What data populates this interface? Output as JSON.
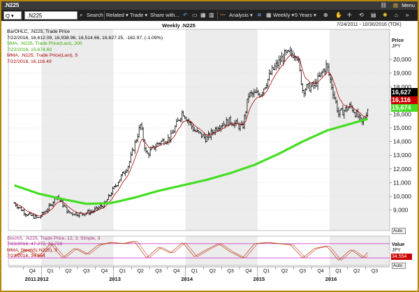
{
  "window": {
    "title": ".N225",
    "menu_label": "Menu"
  },
  "toolbar": {
    "quote_type": "Q",
    "symbol": ".N225",
    "search_label": "Search",
    "related_label": "Related",
    "trade_label": "Trade",
    "share_label": "Share with...",
    "analysis_label": "Analysis",
    "interval_label": "Weekly",
    "range_label": "5 Years"
  },
  "chart_header": {
    "title": "Weekly .N225",
    "date_range": "7/24/2011 - 10/30/2016 (TOK)",
    "price_label": "Price",
    "currency": "JPY",
    "value_label": "Value",
    "value_currency": "JPY",
    "auto_label": "Auto"
  },
  "legend": {
    "main": [
      {
        "text": "BarOHLC, .N225, Trade Price",
        "color": "#000000"
      },
      {
        "text": "7/22/2016, 16,612.09, 16,938.96, 16,514.66, 16,627.25, -182.97, (-1.09%)",
        "color": "#000000"
      },
      {
        "text": "SMA, .N225, Trade Price(Last), 200",
        "color": "#33aa00"
      },
      {
        "text": "7/22/2016, 15,674.60",
        "color": "#33aa00"
      },
      {
        "text": "MMA, .N225, Trade Price(Last), 5",
        "color": "#aa0000"
      },
      {
        "text": "7/22/2016, 16,116.49",
        "color": "#aa0000"
      }
    ],
    "lower": [
      {
        "text": "StochS, .N225, Trade Price, 12, 3, Simple, 3",
        "color": "#aa3388"
      },
      {
        "text": "7/22/2016, 47.272, 31.728",
        "color": "#aa3388"
      },
      {
        "text": "MMA, StochS(.N225), 3",
        "color": "#aa0000"
      },
      {
        "text": "7/22/2016, 34.554",
        "color": "#aa0000"
      }
    ]
  },
  "price_tags": {
    "last": "16,627",
    "mma": "16,116",
    "sma": "15,674",
    "stoch": "34.554"
  },
  "colors": {
    "sma_line": "#44dd22",
    "mma_line": "#aa0000",
    "bars": "#000000",
    "stoch_band": "#cc44cc",
    "stoch_line": "#b8551a",
    "year_shade": "#ececec",
    "frame": "#b8860b"
  },
  "chart_data": {
    "type": "line",
    "title": "Weekly .N225",
    "subtitle": "7/24/2011 - 10/30/2016 (TOK)",
    "y_label": "Price JPY",
    "y_range": [
      7500,
      22200
    ],
    "y_ticks": [
      9000,
      10000,
      11000,
      12000,
      13000,
      14000,
      15000,
      16000,
      17000,
      18000,
      19000,
      20000
    ],
    "x_quarters": [
      "Q4",
      "Q1",
      "Q2",
      "Q3",
      "Q4",
      "Q1",
      "Q2",
      "Q3",
      "Q4",
      "Q1",
      "Q2",
      "Q3",
      "Q4",
      "Q1",
      "Q2",
      "Q3",
      "Q4",
      "Q1",
      "Q2",
      "Q3",
      "Q4"
    ],
    "x_years": [
      "2011",
      "2012",
      "2013",
      "2014",
      "2015",
      "2016"
    ],
    "close_series": {
      "name": "BarOHLC, .N225, Trade Price",
      "points": [
        [
          "2011-08",
          9500
        ],
        [
          "2011-10",
          8700
        ],
        [
          "2011-12",
          8400
        ],
        [
          "2012-02",
          9300
        ],
        [
          "2012-03",
          10100
        ],
        [
          "2012-05",
          8800
        ],
        [
          "2012-07",
          8700
        ],
        [
          "2012-09",
          8900
        ],
        [
          "2012-11",
          9400
        ],
        [
          "2013-01",
          10900
        ],
        [
          "2013-03",
          12300
        ],
        [
          "2013-05",
          15200
        ],
        [
          "2013-06",
          13000
        ],
        [
          "2013-08",
          13900
        ],
        [
          "2013-10",
          14300
        ],
        [
          "2013-12",
          16200
        ],
        [
          "2014-02",
          14800
        ],
        [
          "2014-04",
          14200
        ],
        [
          "2014-06",
          15200
        ],
        [
          "2014-08",
          15500
        ],
        [
          "2014-10",
          15000
        ],
        [
          "2014-11",
          17400
        ],
        [
          "2015-01",
          17500
        ],
        [
          "2015-03",
          19200
        ],
        [
          "2015-05",
          20300
        ],
        [
          "2015-07",
          20500
        ],
        [
          "2015-08",
          17800
        ],
        [
          "2015-10",
          18100
        ],
        [
          "2015-12",
          19600
        ],
        [
          "2016-02",
          16000
        ],
        [
          "2016-04",
          16600
        ],
        [
          "2016-06",
          15300
        ],
        [
          "2016-07",
          16627
        ]
      ]
    },
    "series": [
      {
        "name": "SMA, .N225, Trade Price(Last), 200",
        "points": [
          [
            "2011-08",
            10800
          ],
          [
            "2011-12",
            10200
          ],
          [
            "2012-04",
            9800
          ],
          [
            "2012-08",
            9450
          ],
          [
            "2012-12",
            9500
          ],
          [
            "2013-04",
            9900
          ],
          [
            "2013-08",
            10400
          ],
          [
            "2013-12",
            10800
          ],
          [
            "2014-04",
            11200
          ],
          [
            "2014-08",
            11700
          ],
          [
            "2014-12",
            12300
          ],
          [
            "2015-04",
            13100
          ],
          [
            "2015-08",
            14000
          ],
          [
            "2015-12",
            14800
          ],
          [
            "2016-04",
            15300
          ],
          [
            "2016-07",
            15674
          ]
        ]
      },
      {
        "name": "StochS, .N225, Trade Price, 12, 3, Simple, 3",
        "points": [
          [
            "2011-08",
            30
          ],
          [
            "2011-10",
            55
          ],
          [
            "2011-12",
            25
          ],
          [
            "2012-02",
            80
          ],
          [
            "2012-04",
            20
          ],
          [
            "2012-06",
            60
          ],
          [
            "2012-08",
            35
          ],
          [
            "2012-10",
            75
          ],
          [
            "2012-12",
            85
          ],
          [
            "2013-02",
            80
          ],
          [
            "2013-04",
            90
          ],
          [
            "2013-06",
            20
          ],
          [
            "2013-08",
            65
          ],
          [
            "2013-10",
            40
          ],
          [
            "2013-12",
            85
          ],
          [
            "2014-02",
            25
          ],
          [
            "2014-04",
            55
          ],
          [
            "2014-06",
            80
          ],
          [
            "2014-08",
            45
          ],
          [
            "2014-10",
            20
          ],
          [
            "2014-12",
            80
          ],
          [
            "2015-02",
            85
          ],
          [
            "2015-04",
            80
          ],
          [
            "2015-06",
            75
          ],
          [
            "2015-08",
            20
          ],
          [
            "2015-10",
            60
          ],
          [
            "2015-12",
            70
          ],
          [
            "2016-02",
            10
          ],
          [
            "2016-04",
            55
          ],
          [
            "2016-06",
            20
          ],
          [
            "2016-07",
            47.272
          ]
        ]
      }
    ]
  }
}
